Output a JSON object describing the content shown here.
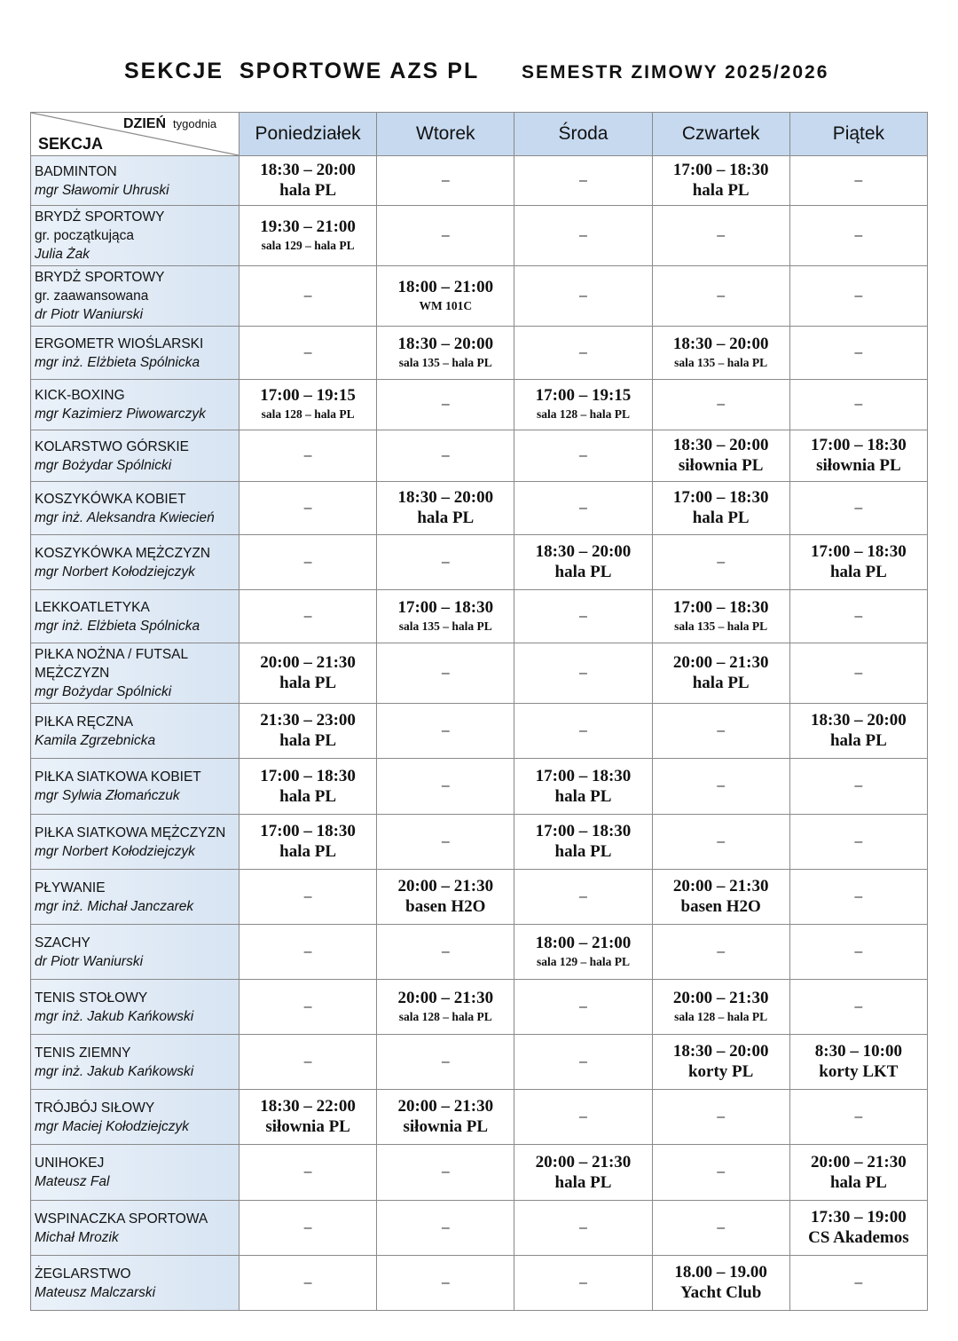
{
  "title": "SEKCJE  SPORTOWE AZS PL",
  "semester": "SEMESTR ZIMOWY 2025/2026",
  "corner": {
    "day": "DZIEŃ",
    "day_sub": "tygodnia",
    "section": "SEKCJA"
  },
  "days": [
    "Poniedziałek",
    "Wtorek",
    "Środa",
    "Czwartek",
    "Piątek"
  ],
  "colors": {
    "header_bg": "#c6d9ef",
    "section_bg": "#dce7f3"
  },
  "rows": [
    {
      "name": "BADMINTON",
      "sub": "",
      "instructor": "mgr Sławomir Uhruski",
      "cells": [
        {
          "t": "18:30 – 20:00",
          "p": "hala PL"
        },
        {
          "t": "–"
        },
        {
          "t": "–"
        },
        {
          "t": "17:00 – 18:30",
          "p": "hala PL"
        },
        {
          "t": "–"
        }
      ]
    },
    {
      "name": "BRYDŻ SPORTOWY",
      "sub": "gr. początkująca",
      "instructor": "Julia Żak",
      "cells": [
        {
          "t": "19:30 – 21:00",
          "p": "sala 129 – hala PL"
        },
        {
          "t": "–"
        },
        {
          "t": "–"
        },
        {
          "t": "–"
        },
        {
          "t": "–"
        }
      ]
    },
    {
      "name": "BRYDŻ SPORTOWY",
      "sub": "gr. zaawansowana",
      "instructor": "dr Piotr Waniurski",
      "cells": [
        {
          "t": "–"
        },
        {
          "t": "18:00 – 21:00",
          "p": "WM 101C"
        },
        {
          "t": "–"
        },
        {
          "t": "–"
        },
        {
          "t": "–"
        }
      ]
    },
    {
      "name": "ERGOMETR WIOŚLARSKI",
      "sub": "",
      "instructor": "mgr inż. Elżbieta Spólnicka",
      "cells": [
        {
          "t": "–"
        },
        {
          "t": "18:30 – 20:00",
          "p": "sala 135 – hala PL"
        },
        {
          "t": "–"
        },
        {
          "t": "18:30 – 20:00",
          "p": "sala 135 – hala PL"
        },
        {
          "t": "–"
        }
      ]
    },
    {
      "name": "KICK-BOXING",
      "sub": "",
      "instructor": "mgr Kazimierz Piwowarczyk",
      "cells": [
        {
          "t": "17:00 – 19:15",
          "p": "sala 128 – hala PL"
        },
        {
          "t": "–"
        },
        {
          "t": "17:00 – 19:15",
          "p": "sala 128 – hala PL"
        },
        {
          "t": "–"
        },
        {
          "t": "–"
        }
      ]
    },
    {
      "name": "KOLARSTWO GÓRSKIE",
      "sub": "",
      "instructor": "mgr Bożydar Spólnicki",
      "cells": [
        {
          "t": "–"
        },
        {
          "t": "–"
        },
        {
          "t": "–"
        },
        {
          "t": "18:30 – 20:00",
          "p": "siłownia PL"
        },
        {
          "t": "17:00 – 18:30",
          "p": "siłownia PL"
        }
      ]
    },
    {
      "name": "KOSZYKÓWKA KOBIET",
      "sub": "",
      "instructor": "mgr inż. Aleksandra Kwiecień",
      "cells": [
        {
          "t": "–"
        },
        {
          "t": "18:30 – 20:00",
          "p": "hala PL"
        },
        {
          "t": "–"
        },
        {
          "t": "17:00 – 18:30",
          "p": "hala PL"
        },
        {
          "t": "–"
        }
      ]
    },
    {
      "name": "KOSZYKÓWKA MĘŻCZYZN",
      "sub": "",
      "instructor": "mgr Norbert Kołodziejczyk",
      "cells": [
        {
          "t": "–"
        },
        {
          "t": "–"
        },
        {
          "t": "18:30 – 20:00",
          "p": "hala PL"
        },
        {
          "t": "–"
        },
        {
          "t": "17:00 – 18:30",
          "p": "hala PL"
        }
      ]
    },
    {
      "name": "LEKKOATLETYKA",
      "sub": "",
      "instructor": "mgr inż. Elżbieta Spólnicka",
      "cells": [
        {
          "t": "–"
        },
        {
          "t": "17:00 – 18:30",
          "p": "sala 135 – hala PL"
        },
        {
          "t": "–"
        },
        {
          "t": "17:00 – 18:30",
          "p": "sala 135 – hala PL"
        },
        {
          "t": "–"
        }
      ]
    },
    {
      "name": "PIŁKA NOŻNA / FUTSAL MĘŻCZYZN",
      "sub": "",
      "instructor": "mgr Bożydar Spólnicki",
      "cells": [
        {
          "t": "20:00 – 21:30",
          "p": "hala PL"
        },
        {
          "t": "–"
        },
        {
          "t": "–"
        },
        {
          "t": "20:00 – 21:30",
          "p": "hala PL"
        },
        {
          "t": "–"
        }
      ]
    },
    {
      "name": "PIŁKA RĘCZNA",
      "sub": "",
      "instructor": "Kamila Zgrzebnicka",
      "cells": [
        {
          "t": "21:30 – 23:00",
          "p": "hala PL"
        },
        {
          "t": "–"
        },
        {
          "t": "–"
        },
        {
          "t": "–"
        },
        {
          "t": "18:30 – 20:00",
          "p": "hala PL"
        }
      ]
    },
    {
      "name": "PIŁKA SIATKOWA KOBIET",
      "sub": "",
      "instructor": "mgr Sylwia Złomańczuk",
      "cells": [
        {
          "t": "17:00 – 18:30",
          "p": "hala PL"
        },
        {
          "t": "–"
        },
        {
          "t": "17:00 – 18:30",
          "p": "hala PL"
        },
        {
          "t": "–"
        },
        {
          "t": "–"
        }
      ]
    },
    {
      "name": "PIŁKA SIATKOWA MĘŻCZYZN",
      "sub": "",
      "instructor": "mgr Norbert Kołodziejczyk",
      "cells": [
        {
          "t": "17:00 – 18:30",
          "p": "hala PL"
        },
        {
          "t": "–"
        },
        {
          "t": "17:00 – 18:30",
          "p": "hala PL"
        },
        {
          "t": "–"
        },
        {
          "t": "–"
        }
      ]
    },
    {
      "name": "PŁYWANIE",
      "sub": "",
      "instructor": "mgr inż. Michał Janczarek",
      "cells": [
        {
          "t": "–"
        },
        {
          "t": "20:00 – 21:30",
          "p": "basen H2O"
        },
        {
          "t": "–"
        },
        {
          "t": "20:00 – 21:30",
          "p": "basen H2O"
        },
        {
          "t": "–"
        }
      ]
    },
    {
      "name": "SZACHY",
      "sub": "",
      "instructor": "dr Piotr Waniurski",
      "cells": [
        {
          "t": "–"
        },
        {
          "t": "–"
        },
        {
          "t": "18:00 – 21:00",
          "p": "sala 129 – hala PL"
        },
        {
          "t": "–"
        },
        {
          "t": "–"
        }
      ]
    },
    {
      "name": "TENIS STOŁOWY",
      "sub": "",
      "instructor": "mgr inż. Jakub Kańkowski",
      "cells": [
        {
          "t": "–"
        },
        {
          "t": "20:00 – 21:30",
          "p": "sala 128 – hala PL"
        },
        {
          "t": "–"
        },
        {
          "t": "20:00 – 21:30",
          "p": "sala 128 – hala PL"
        },
        {
          "t": "–"
        }
      ]
    },
    {
      "name": "TENIS ZIEMNY",
      "sub": "",
      "instructor": "mgr inż. Jakub Kańkowski",
      "cells": [
        {
          "t": "–"
        },
        {
          "t": "–"
        },
        {
          "t": "–"
        },
        {
          "t": "18:30 – 20:00",
          "p": "korty PL"
        },
        {
          "t": "8:30 – 10:00",
          "p": "korty LKT"
        }
      ]
    },
    {
      "name": "TRÓJBÓJ SIŁOWY",
      "sub": "",
      "instructor": "mgr Maciej Kołodziejczyk",
      "cells": [
        {
          "t": "18:30 – 22:00",
          "p": "siłownia PL"
        },
        {
          "t": "20:00 – 21:30",
          "p": "siłownia PL"
        },
        {
          "t": "–"
        },
        {
          "t": "–"
        },
        {
          "t": "–"
        }
      ]
    },
    {
      "name": "UNIHOKEJ",
      "sub": "",
      "instructor": "Mateusz Fal",
      "cells": [
        {
          "t": "–"
        },
        {
          "t": "–"
        },
        {
          "t": "20:00 – 21:30",
          "p": "hala PL"
        },
        {
          "t": "–"
        },
        {
          "t": "20:00 – 21:30",
          "p": "hala PL"
        }
      ]
    },
    {
      "name": "WSPINACZKA SPORTOWA",
      "sub": "",
      "instructor": "Michał Mrozik",
      "cells": [
        {
          "t": "–"
        },
        {
          "t": "–"
        },
        {
          "t": "–"
        },
        {
          "t": "–"
        },
        {
          "t": "17:30 – 19:00",
          "p": "CS Akademos"
        }
      ]
    },
    {
      "name": "ŻEGLARSTWO",
      "sub": "",
      "instructor": "Mateusz Malczarski",
      "cells": [
        {
          "t": "–"
        },
        {
          "t": "–"
        },
        {
          "t": "–"
        },
        {
          "t": "18.00 – 19.00",
          "p": "Yacht Club"
        },
        {
          "t": "–"
        }
      ]
    }
  ]
}
